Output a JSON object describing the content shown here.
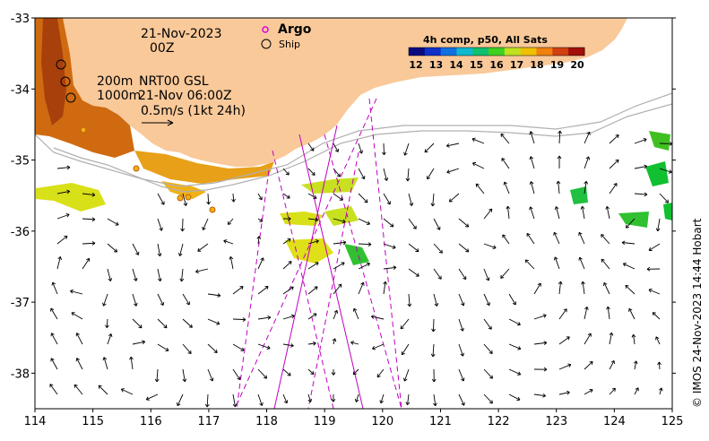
{
  "map": {
    "lon_range": [
      114,
      125
    ],
    "lat_range": [
      -38.5,
      -33
    ],
    "x_ticks": [
      "114",
      "115",
      "116",
      "117",
      "118",
      "119",
      "120",
      "121",
      "122",
      "123",
      "124",
      "125"
    ],
    "y_ticks": [
      "-33",
      "-34",
      "-35",
      "-36",
      "-37",
      "-38"
    ],
    "colors": {
      "land": "#f9c99a",
      "sea": "#ffffff",
      "argo": "#e000e0",
      "swath": "#c000c0",
      "isobath": "#b0b0b0"
    }
  },
  "annotations": {
    "date": "21-Nov-2023",
    "time": "00Z",
    "depth_200": "200m",
    "depth_1000": "1000m",
    "product": "NRT00 GSL",
    "product_time": "21-Nov 06:00Z",
    "scale_label": "0.5m/s (1kt 24h)"
  },
  "legend": {
    "argo_label": "Argo",
    "ship_label": "Ship"
  },
  "colorbar": {
    "title": "4h comp, p50, All Sats",
    "ticks": [
      "12",
      "13",
      "14",
      "15",
      "16",
      "17",
      "18",
      "19",
      "20"
    ],
    "colors": [
      "#0a0a80",
      "#1030c8",
      "#1070e0",
      "#10b8d0",
      "#10c070",
      "#40d020",
      "#c0e020",
      "#f0c000",
      "#f08010",
      "#d04010",
      "#a01008"
    ]
  },
  "credit": "© IMOS 24-Nov-2023 14:44 Hobart"
}
